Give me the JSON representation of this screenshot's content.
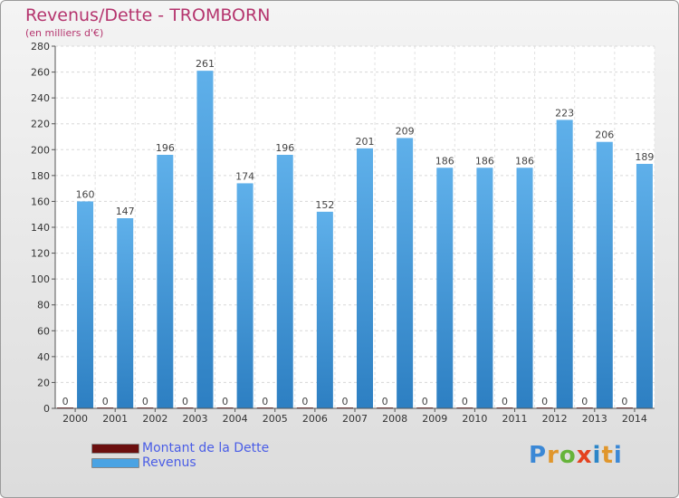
{
  "header": {
    "title": "Revenus/Dette - TROMBORN",
    "subtitle": "(en milliers d'€)"
  },
  "chart_data": {
    "type": "bar",
    "title": "Revenus/Dette - TROMBORN",
    "ylabel": "(en milliers d'€)",
    "ylim": [
      0,
      280
    ],
    "yticks": [
      0,
      20,
      40,
      60,
      80,
      100,
      120,
      140,
      160,
      180,
      200,
      220,
      240,
      260,
      280
    ],
    "grid": true,
    "legend_position": "bottom-left",
    "categories": [
      "2000",
      "2001",
      "2002",
      "2003",
      "2004",
      "2005",
      "2006",
      "2007",
      "2008",
      "2009",
      "2010",
      "2011",
      "2012",
      "2013",
      "2014"
    ],
    "series": [
      {
        "name": "Montant de la Dette",
        "color": "#6b0f0f",
        "values": [
          0,
          0,
          0,
          0,
          0,
          0,
          0,
          0,
          0,
          0,
          0,
          0,
          0,
          0,
          0
        ]
      },
      {
        "name": "Revenus",
        "color": "#4aa3e3",
        "values": [
          160,
          147,
          196,
          261,
          174,
          196,
          152,
          201,
          209,
          186,
          186,
          186,
          223,
          206,
          189
        ]
      }
    ]
  },
  "legend": {
    "items": [
      {
        "label": "Montant de la Dette",
        "color": "#6b0f0f"
      },
      {
        "label": "Revenus",
        "color": "#4aa3e3"
      }
    ]
  },
  "logo": {
    "text": "Proxiti",
    "colors": [
      "#3b88d6",
      "#e0962c",
      "#66b43a",
      "#e4421f",
      "#2c86c8",
      "#e0962c",
      "#3b88d6"
    ]
  }
}
